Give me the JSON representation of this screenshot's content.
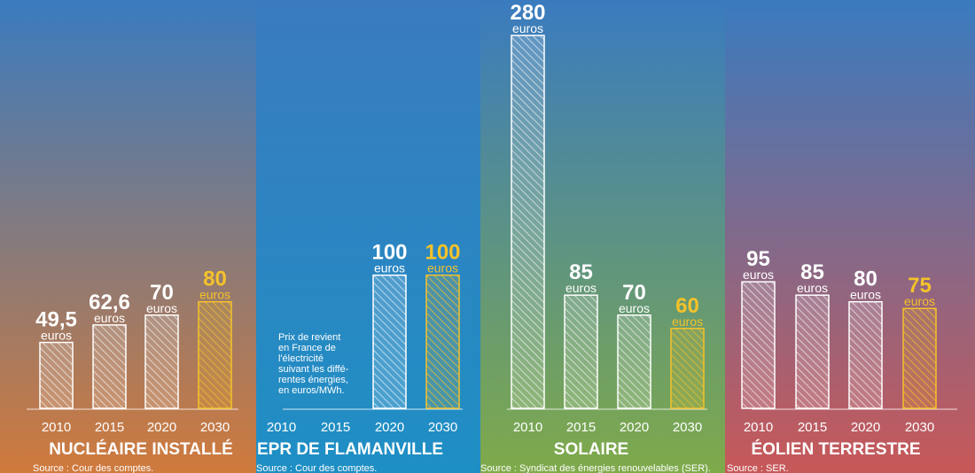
{
  "colors": {
    "top": "#3a7bbf",
    "nuclear_bottom": "#d07a3c",
    "epr_bottom": "#1e8fc4",
    "solar_bottom": "#7faa4a",
    "wind_bottom": "#c85858",
    "highlight": "#f4c22b",
    "bar_fill": "#ffffff"
  },
  "note": [
    "Prix de revient",
    "en France de",
    "l'électricité",
    "suivant les diffé-",
    "rentes énergies,",
    "en euros/MWh."
  ],
  "chart_data": {
    "type": "bar",
    "unit": "euros",
    "groups": [
      {
        "id": "nuclear",
        "title": "NUCLÉAIRE INSTALLÉ",
        "source": "Source : Cour des comptes.",
        "categories": [
          "2010",
          "2015",
          "2020",
          "2030"
        ],
        "values": [
          49.5,
          62.6,
          70,
          80
        ],
        "labels": [
          "49,5",
          "62,6",
          "70",
          "80"
        ],
        "highlight": [
          false,
          false,
          false,
          true
        ]
      },
      {
        "id": "epr",
        "title": "EPR DE FLAMANVILLE",
        "source": "Source : Cour des comptes.",
        "categories": [
          "2010",
          "2015",
          "2020",
          "2030"
        ],
        "values": [
          null,
          null,
          100,
          100
        ],
        "labels": [
          "",
          "",
          "100",
          "100"
        ],
        "highlight": [
          false,
          false,
          false,
          true
        ]
      },
      {
        "id": "solar",
        "title": "SOLAIRE",
        "source": "Source : Syndicat des énergies renouvelables (SER).",
        "categories": [
          "2010",
          "2015",
          "2020",
          "2030"
        ],
        "values": [
          280,
          85,
          70,
          60
        ],
        "labels": [
          "280",
          "85",
          "70",
          "60"
        ],
        "highlight": [
          false,
          false,
          false,
          true
        ]
      },
      {
        "id": "wind",
        "title": "ÉOLIEN TERRESTRE",
        "source": "Source : SER.",
        "categories": [
          "2010",
          "2015",
          "2020",
          "2030"
        ],
        "values": [
          95,
          85,
          80,
          75
        ],
        "labels": [
          "95",
          "85",
          "80",
          "75"
        ],
        "highlight": [
          false,
          false,
          false,
          true
        ]
      }
    ],
    "ylim": [
      0,
      280
    ]
  }
}
